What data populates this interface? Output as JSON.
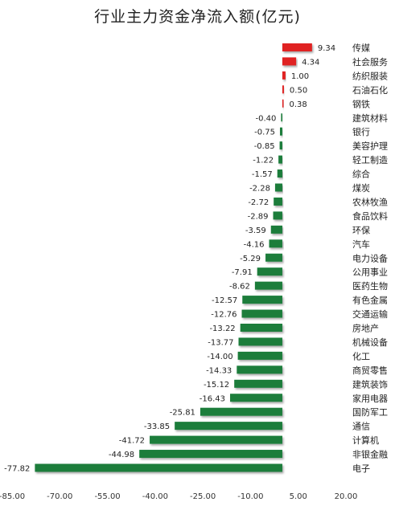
{
  "chart_data": {
    "type": "bar",
    "orientation": "horizontal",
    "title": "行业主力资金净流入额(亿元)",
    "xlabel": "",
    "ylabel": "",
    "xlim": [
      -85,
      20
    ],
    "x_ticks": [
      "-85.00",
      "-70.00",
      "-55.00",
      "-40.00",
      "-25.00",
      "-10.00",
      "5.00",
      "20.00"
    ],
    "x_tick_values": [
      -85,
      -70,
      -55,
      -40,
      -25,
      -10,
      5,
      20
    ],
    "grid": false,
    "legend": "none",
    "colors": {
      "positive": "#e02020",
      "negative": "#1a7d3a"
    },
    "categories": [
      "传媒",
      "社会服务",
      "纺织服装",
      "石油石化",
      "钢铁",
      "建筑材料",
      "银行",
      "美容护理",
      "轻工制造",
      "综合",
      "煤炭",
      "农林牧渔",
      "食品饮料",
      "环保",
      "汽车",
      "电力设备",
      "公用事业",
      "医药生物",
      "有色金属",
      "交通运输",
      "房地产",
      "机械设备",
      "化工",
      "商贸零售",
      "建筑装饰",
      "家用电器",
      "国防军工",
      "通信",
      "计算机",
      "非银金融",
      "电子"
    ],
    "values": [
      9.34,
      4.34,
      1.0,
      0.5,
      0.38,
      -0.4,
      -0.75,
      -0.85,
      -1.22,
      -1.57,
      -2.28,
      -2.72,
      -2.89,
      -3.59,
      -4.16,
      -5.29,
      -7.91,
      -8.62,
      -12.57,
      -12.76,
      -13.22,
      -13.77,
      -14.0,
      -14.33,
      -15.12,
      -16.43,
      -25.81,
      -33.85,
      -41.72,
      -44.98,
      -77.82
    ],
    "value_labels": [
      "9.34",
      "4.34",
      "1.00",
      "0.50",
      "0.38",
      "-0.40",
      "-0.75",
      "-0.85",
      "-1.22",
      "-1.57",
      "-2.28",
      "-2.72",
      "-2.89",
      "-3.59",
      "-4.16",
      "-5.29",
      "-7.91",
      "-8.62",
      "-12.57",
      "-12.76",
      "-13.22",
      "-13.77",
      "-14.00",
      "-14.33",
      "-15.12",
      "-16.43",
      "-25.81",
      "-33.85",
      "-41.72",
      "-44.98",
      "-77.82"
    ]
  }
}
